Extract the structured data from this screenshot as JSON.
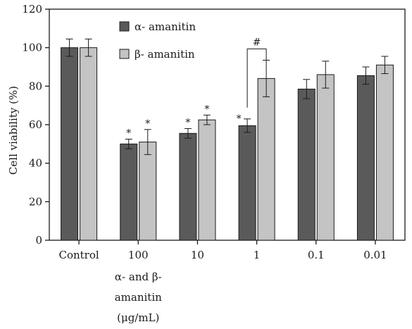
{
  "chart_data": {
    "type": "bar",
    "title": "",
    "xlabel": "",
    "ylabel": "Cell viability (%)",
    "ylim": [
      0,
      120
    ],
    "yticks": [
      "0",
      "20",
      "40",
      "60",
      "80",
      "100",
      "120"
    ],
    "categories": [
      "Control",
      "100",
      "10",
      "1",
      "0.1",
      "0.01"
    ],
    "x_axis_note": [
      "α- and β-",
      "amanitin",
      "(μg/mL)"
    ],
    "legend_position": "top-left",
    "grid": false,
    "series": [
      {
        "name": "α- amanitin",
        "color": "#5a5a5a",
        "values": [
          100,
          50,
          55.5,
          59.5,
          78.5,
          85.5
        ],
        "errors": [
          4.5,
          2.5,
          2.5,
          3.5,
          5,
          4.5
        ],
        "markers": [
          "",
          "*",
          "*",
          "*",
          "",
          ""
        ]
      },
      {
        "name": "β- amanitin",
        "color": "#c4c4c4",
        "values": [
          100,
          51,
          62.5,
          84,
          86,
          91
        ],
        "errors": [
          4.5,
          6.5,
          2.5,
          9.5,
          7,
          4.5
        ],
        "markers": [
          "",
          "*",
          "*",
          "",
          "",
          ""
        ]
      }
    ],
    "annotations": [
      {
        "type": "bracket",
        "category": "1",
        "label": "#"
      }
    ]
  }
}
